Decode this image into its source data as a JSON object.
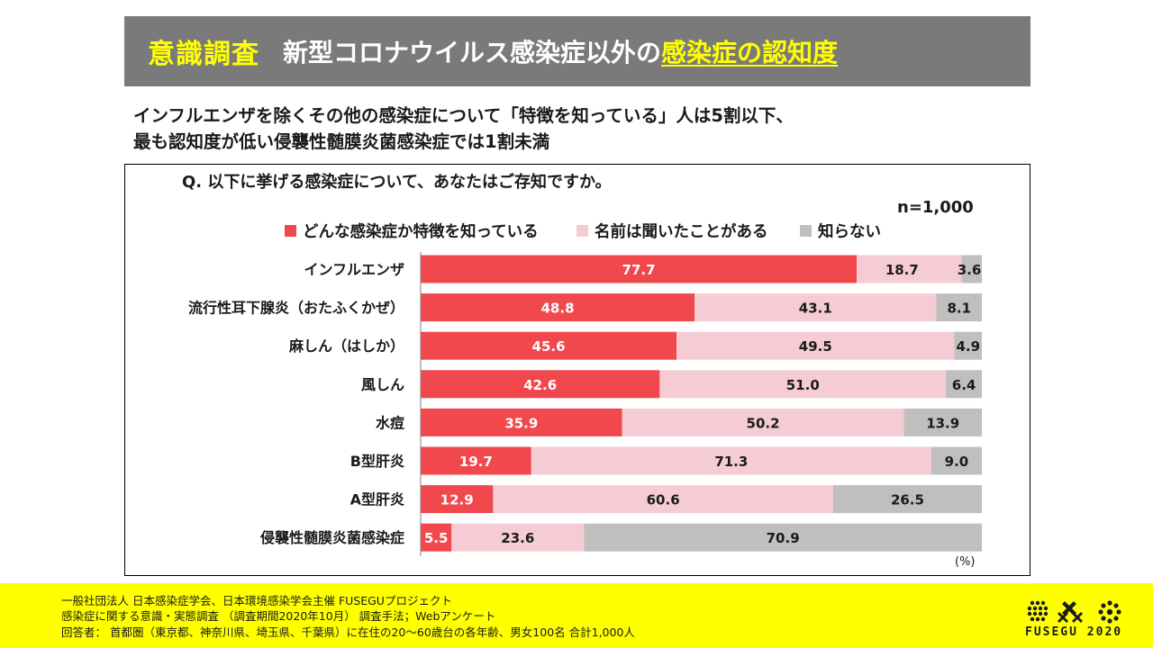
{
  "header": {
    "lead": "意識調査",
    "title_main": "新型コロナウイルス感染症以外の",
    "title_highlight": "感染症の認知度"
  },
  "headline": [
    "インフルエンザを除くその他の感染症について「特徴を知っている」人は5割以下、",
    "最も認知度が低い侵襲性髄膜炎菌感染症では1割未満"
  ],
  "question": "Q. 以下に挙げる感染症について、あなたはご存知ですか。",
  "sample": "n=1,000",
  "unit": "(%)",
  "colors": {
    "know": "#f0484d",
    "heard": "#f5ccd3",
    "unknown": "#bfbfbf",
    "title_bg": "#7a7a7a",
    "accent": "#ffff00"
  },
  "chart_data": {
    "type": "bar",
    "orientation": "horizontal",
    "stacked": true,
    "categories": [
      "インフルエンザ",
      "流行性耳下腺炎（おたふくかぜ）",
      "麻しん（はしか）",
      "風しん",
      "水痘",
      "B型肝炎",
      "A型肝炎",
      "侵襲性髄膜炎菌感染症"
    ],
    "series": [
      {
        "name": "どんな感染症か特徴を知っている",
        "values": [
          77.7,
          48.8,
          45.6,
          42.6,
          35.9,
          19.7,
          12.9,
          5.5
        ]
      },
      {
        "name": "名前は聞いたことがある",
        "values": [
          18.7,
          43.1,
          49.5,
          51.0,
          50.2,
          71.3,
          60.6,
          23.6
        ]
      },
      {
        "name": "知らない",
        "values": [
          3.6,
          8.1,
          4.9,
          6.4,
          13.9,
          9.0,
          26.5,
          70.9
        ]
      }
    ],
    "value_labels": [
      [
        "77.7",
        "18.7",
        "3.6"
      ],
      [
        "48.8",
        "43.1",
        "8.1"
      ],
      [
        "45.6",
        "49.5",
        "4.9"
      ],
      [
        "42.6",
        "51.0",
        "6.4"
      ],
      [
        "35.9",
        "50.2",
        "13.9"
      ],
      [
        "19.7",
        "71.3",
        "9.0"
      ],
      [
        "12.9",
        "60.6",
        "26.5"
      ],
      [
        "5.5",
        "23.6",
        "70.9"
      ]
    ],
    "xlim": [
      0,
      100
    ],
    "legend_position": "top"
  },
  "footer": {
    "lines": [
      "一般社団法人 日本感染症学会、日本環境感染学会主催 FUSEGUプロジェクト",
      "感染症に関する意識・実態調査 （調査期間2020年10月） 調査手法；Webアンケート",
      "回答者： 首都圏（東京都、神奈川県、埼玉県、千葉県）に在住の20～60歳台の各年齢、男女100名 合計1,000人"
    ],
    "logo_text": "FUSEGU 2020"
  }
}
